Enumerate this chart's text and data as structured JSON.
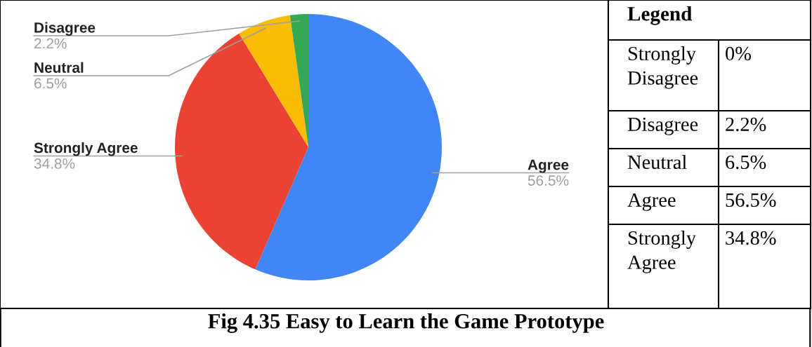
{
  "chart_data": [
    {
      "type": "pie",
      "title": "Fig 4.35 Easy to Learn the Game Prototype",
      "categories": [
        "Agree",
        "Strongly Agree",
        "Neutral",
        "Disagree"
      ],
      "values": [
        56.5,
        34.8,
        6.5,
        2.2
      ],
      "colors": [
        "#4285f4",
        "#ea4335",
        "#fbbc04",
        "#34a853"
      ],
      "value_labels": [
        "56.5%",
        "34.8%",
        "6.5%",
        "2.2%"
      ]
    },
    {
      "type": "other",
      "title": "Legend",
      "annotations": [
        "Strongly Disagree",
        "0%",
        "Disagree",
        "2.2%",
        "Neutral",
        "6.5%",
        "Agree",
        "56.5%",
        "Strongly Agree",
        "34.8%"
      ]
    }
  ]
}
